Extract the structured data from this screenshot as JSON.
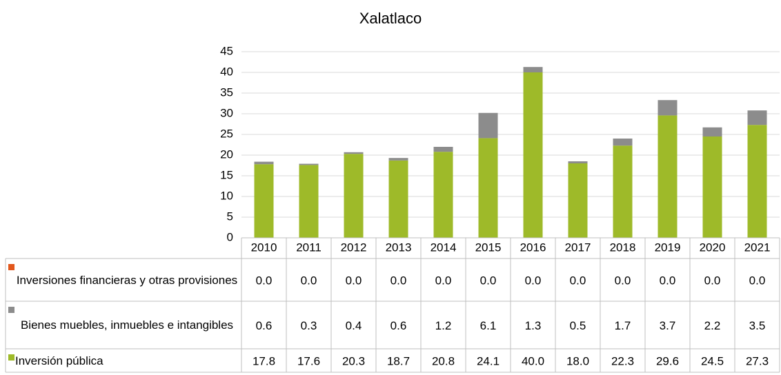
{
  "chart_data": {
    "type": "bar",
    "stacked": true,
    "title": "Xalatlaco",
    "categories": [
      "2010",
      "2011",
      "2012",
      "2013",
      "2014",
      "2015",
      "2016",
      "2017",
      "2018",
      "2019",
      "2020",
      "2021"
    ],
    "series": [
      {
        "name": "Inversiones financieras y otras provisiones",
        "color": "#e2571c",
        "values": [
          0,
          0,
          0,
          0,
          0,
          0,
          0,
          0,
          0,
          0,
          0,
          0
        ],
        "value_labels": [
          "0.0",
          "0.0",
          "0.0",
          "0.0",
          "0.0",
          "0.0",
          "0.0",
          "0.0",
          "0.0",
          "0.0",
          "0.0",
          "0.0"
        ]
      },
      {
        "name": "Bienes muebles, inmuebles e intangibles",
        "color": "#8c8c8c",
        "values": [
          0.6,
          0.3,
          0.4,
          0.6,
          1.2,
          6.1,
          1.3,
          0.5,
          1.7,
          3.7,
          2.2,
          3.5
        ]
      },
      {
        "name": "Inversión pública",
        "color": "#9eba29",
        "values": [
          17.8,
          17.6,
          20.3,
          18.7,
          20.8,
          24.1,
          40,
          18,
          22.3,
          29.6,
          24.5,
          27.3
        ],
        "value_labels": [
          "17.8",
          "17.6",
          "20.3",
          "18.7",
          "20.8",
          "24.1",
          "40.0",
          "18.0",
          "22.3",
          "29.6",
          "24.5",
          "27.3"
        ]
      }
    ],
    "ylim": [
      0,
      45
    ],
    "yticks": [
      0,
      5,
      10,
      15,
      20,
      25,
      30,
      35,
      40,
      45
    ],
    "grid": true
  }
}
